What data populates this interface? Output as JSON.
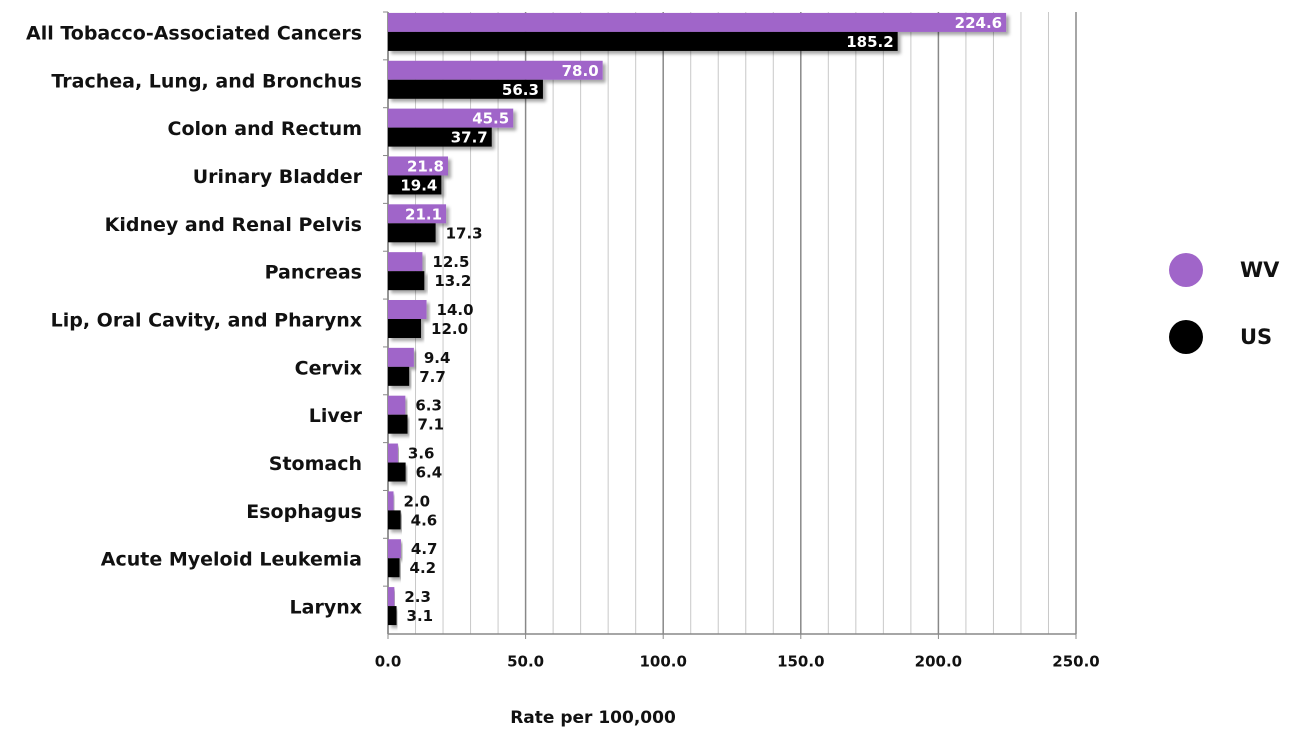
{
  "chart_data": {
    "type": "hbar",
    "categories": [
      "All Tobacco-Associated Cancers",
      "Trachea, Lung, and Bronchus",
      "Colon and Rectum",
      "Urinary Bladder",
      "Kidney and Renal Pelvis",
      "Pancreas",
      "Lip, Oral Cavity, and Pharynx",
      "Cervix",
      "Liver",
      "Stomach",
      "Esophagus",
      "Acute Myeloid Leukemia",
      "Larynx"
    ],
    "series": [
      {
        "name": "WV",
        "color": "#a065c9",
        "values": [
          224.6,
          78.0,
          45.5,
          21.8,
          21.1,
          12.5,
          14.0,
          9.4,
          6.3,
          3.6,
          2.0,
          4.7,
          2.3
        ],
        "value_labels": [
          "224.6",
          "78.0",
          "45.5",
          "21.8",
          "21.1",
          "12.5",
          "14.0",
          "9.4",
          "6.3",
          "3.6",
          "2.0",
          "4.7",
          "2.3"
        ]
      },
      {
        "name": "US",
        "color": "#000000",
        "values": [
          185.2,
          56.3,
          37.7,
          19.4,
          17.3,
          13.2,
          12.0,
          7.7,
          7.1,
          6.4,
          4.6,
          4.2,
          3.1
        ],
        "value_labels": [
          "185.2",
          "56.3",
          "37.7",
          "19.4",
          "17.3",
          "13.2",
          "12.0",
          "7.7",
          "7.1",
          "6.4",
          "4.6",
          "4.2",
          "3.1"
        ]
      }
    ],
    "xlabel": "Rate per 100,000",
    "xlim": [
      0,
      250
    ],
    "xticks": [
      {
        "value": 0,
        "label": "0.0"
      },
      {
        "value": 50,
        "label": "50.0"
      },
      {
        "value": 100,
        "label": "100.0"
      },
      {
        "value": 150,
        "label": "150.0"
      },
      {
        "value": 200,
        "label": "200.0"
      },
      {
        "value": 250,
        "label": "250.0"
      }
    ],
    "xminorticks": [
      10,
      20,
      30,
      40,
      60,
      70,
      80,
      90,
      110,
      120,
      130,
      140,
      160,
      170,
      180,
      190,
      210,
      220,
      230,
      240
    ],
    "grid": true,
    "legend": "right"
  }
}
